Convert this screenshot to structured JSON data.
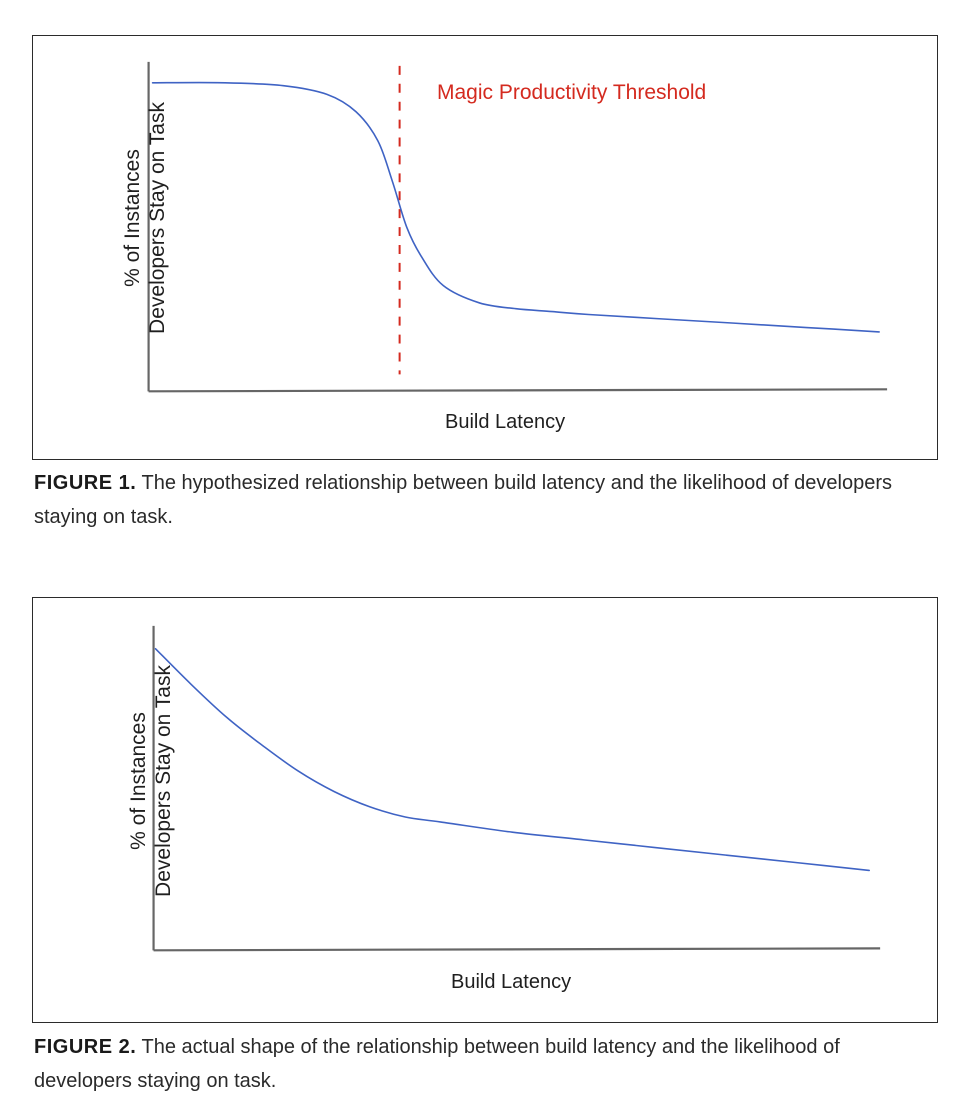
{
  "figures": [
    {
      "caption_label": "FIGURE 1.",
      "caption_text": "The hypothesized relationship between build latency and the likelihood of developers staying on task.",
      "annotation": "Magic Productivity Threshold"
    },
    {
      "caption_label": "FIGURE 2.",
      "caption_text": "The actual shape of the relationship between build latency and the likelihood of developers staying on task."
    }
  ],
  "colors": {
    "curve": "#3f63c4",
    "threshold": "#d42a1f",
    "axis": "#666666"
  },
  "chart_data": [
    {
      "type": "line",
      "xlabel": "Build Latency",
      "ylabel_lines": [
        "% of Instances",
        "Developers Stay on Task"
      ],
      "xlim": [
        0,
        100
      ],
      "ylim": [
        0,
        100
      ],
      "grid": false,
      "ticks": false,
      "series": [
        {
          "x": [
            0,
            10,
            18,
            24,
            28,
            31,
            33,
            35,
            37,
            40,
            45,
            50,
            55,
            60,
            70,
            80,
            90,
            100
          ],
          "y": [
            100,
            100,
            99,
            96,
            90,
            80,
            66,
            50,
            40,
            30,
            24,
            22,
            21,
            20,
            18.5,
            17,
            15.5,
            14
          ]
        }
      ],
      "annotations": [
        {
          "type": "vline",
          "x": 34,
          "style": "dashed",
          "label": "Magic Productivity Threshold"
        }
      ]
    },
    {
      "type": "line",
      "xlabel": "Build Latency",
      "ylabel_lines": [
        "% of Instances",
        "Developers Stay on Task"
      ],
      "xlim": [
        0,
        100
      ],
      "ylim": [
        0,
        100
      ],
      "grid": false,
      "ticks": false,
      "series": [
        {
          "x": [
            0,
            5,
            10,
            15,
            20,
            25,
            30,
            35,
            40,
            50,
            60,
            70,
            80,
            90,
            100
          ],
          "y": [
            100,
            86,
            73,
            62,
            52,
            44,
            38,
            34,
            32,
            28,
            25,
            22,
            19,
            16,
            13
          ]
        }
      ]
    }
  ]
}
